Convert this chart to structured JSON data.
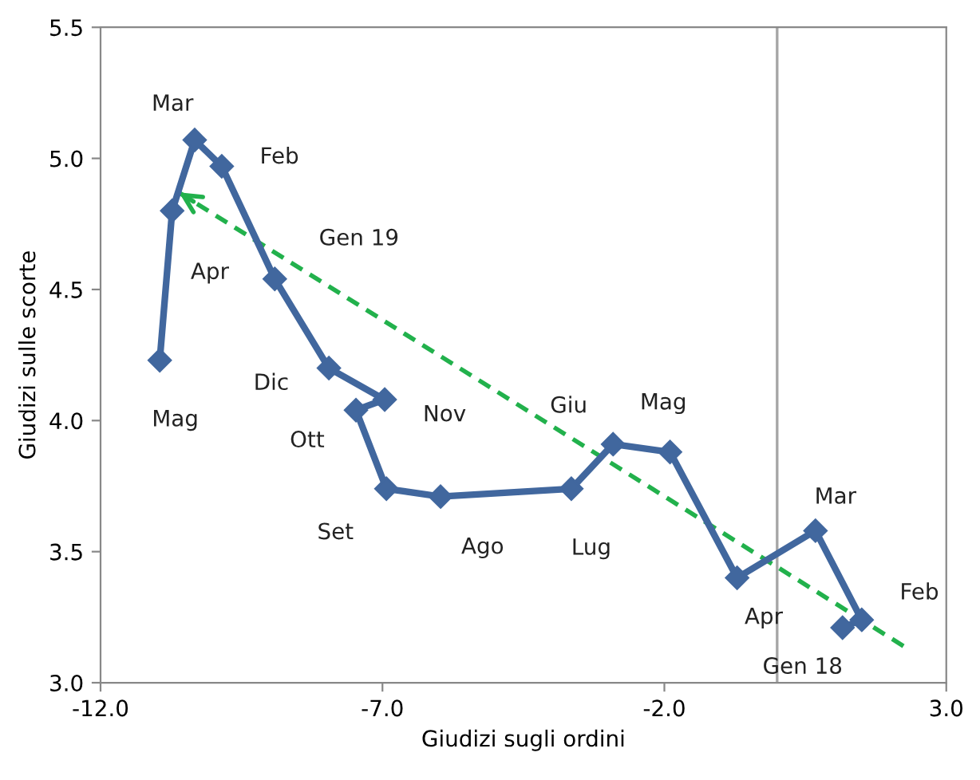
{
  "chart_data": {
    "type": "line",
    "xlabel": "Giudizi sugli ordini",
    "ylabel": "Giudizi sulle scorte",
    "xlim": [
      -12,
      3
    ],
    "xticks": [
      {
        "value": -12,
        "label": "-12.0"
      },
      {
        "value": -7,
        "label": "-7.0"
      },
      {
        "value": -2,
        "label": "-2.0"
      },
      {
        "value": 3,
        "label": "3.0"
      }
    ],
    "ylim": [
      3.0,
      5.5
    ],
    "yticks": [
      {
        "value": 3.0,
        "label": "3.0"
      },
      {
        "value": 3.5,
        "label": "3.5"
      },
      {
        "value": 4.0,
        "label": "4.0"
      },
      {
        "value": 4.5,
        "label": "4.5"
      },
      {
        "value": 5.0,
        "label": "5.0"
      },
      {
        "value": 5.5,
        "label": "5.5"
      }
    ],
    "grid": false,
    "legend": false,
    "ref_lines": [
      {
        "axis": "x",
        "value": 0,
        "color": "#a6a6a6",
        "line_style": "solid"
      }
    ],
    "series": [
      {
        "color": "#41679e",
        "marker": "diamond",
        "line_style": "solid",
        "x": [
          1.16,
          1.5,
          0.68,
          -0.71,
          -1.9,
          -2.91,
          -3.65,
          -5.97,
          -6.93,
          -7.47,
          -6.96,
          -7.95,
          -8.91,
          -9.85,
          -10.33,
          -10.73,
          -10.95
        ],
        "values": [
          3.21,
          3.24,
          3.58,
          3.4,
          3.88,
          3.91,
          3.74,
          3.71,
          3.74,
          4.04,
          4.08,
          4.2,
          4.54,
          4.97,
          5.07,
          4.8,
          4.23
        ],
        "value_labels": [
          "Gen 18",
          "Feb",
          "Mar",
          "Apr",
          "Mag",
          "Giu",
          "Lug",
          "Ago",
          "Set",
          "Ott",
          "Nov",
          "Dic",
          "Gen 19",
          "Feb",
          "Mar",
          "Apr",
          "Mag"
        ]
      },
      {
        "color": "#22b14c",
        "marker": "none",
        "line_style": "dashed",
        "x": [
          2.24,
          -10.61
        ],
        "values": [
          3.14,
          4.87
        ]
      }
    ]
  }
}
